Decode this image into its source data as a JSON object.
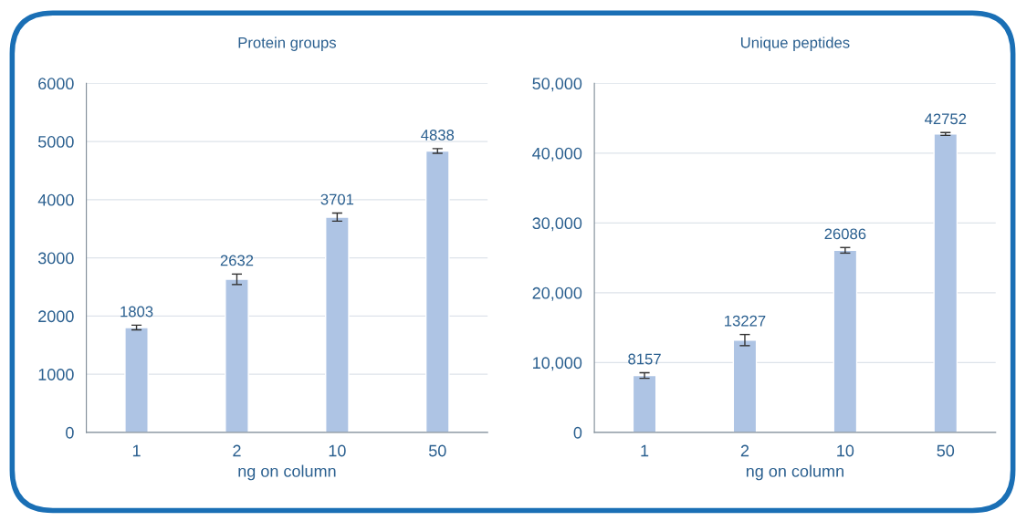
{
  "chart_data": [
    {
      "type": "bar",
      "title": "Protein groups",
      "xlabel": "ng on column",
      "categories": [
        "1",
        "2",
        "10",
        "50"
      ],
      "series": [
        {
          "color": "#aec4e4",
          "values": [
            1803,
            2632,
            3701,
            4838
          ],
          "errors": [
            40,
            90,
            70,
            40
          ]
        }
      ],
      "ylim": [
        0,
        6000
      ],
      "yticks": [
        0,
        1000,
        2000,
        3000,
        4000,
        5000,
        6000
      ],
      "grid": "y",
      "data_labels": true,
      "legend": false
    },
    {
      "type": "bar",
      "title": "Unique peptides",
      "xlabel": "ng on column",
      "categories": [
        "1",
        "2",
        "10",
        "50"
      ],
      "series": [
        {
          "color": "#aec4e4",
          "values": [
            8157,
            13227,
            26086,
            42752
          ],
          "errors": [
            400,
            800,
            400,
            200
          ]
        }
      ],
      "ylim": [
        0,
        50000
      ],
      "yticks": [
        0,
        {
          "value": 10000,
          "label": "10,000"
        },
        {
          "value": 20000,
          "label": "20,000"
        },
        {
          "value": 30000,
          "label": "30,000"
        },
        {
          "value": 40000,
          "label": "40,000"
        },
        {
          "value": 50000,
          "label": "50,000"
        }
      ],
      "grid": "y",
      "data_labels": true,
      "legend": false
    }
  ]
}
